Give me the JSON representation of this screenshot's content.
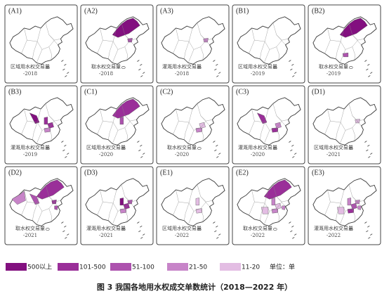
{
  "panels": [
    {
      "label": "(A1)",
      "caption": "区域用水权交易量",
      "year": "-2018"
    },
    {
      "label": "(A2)",
      "caption": "取水权交易量",
      "year": "-2018"
    },
    {
      "label": "(A3)",
      "caption": "灌溉用水权交易量",
      "year": "-2018"
    },
    {
      "label": "(B1)",
      "caption": "区域用水权交易量",
      "year": "-2019"
    },
    {
      "label": "(B2)",
      "caption": "取水权交易量",
      "year": "-2019"
    },
    {
      "label": "(B3)",
      "caption": "灌溉用水权交易量",
      "year": "-2019"
    },
    {
      "label": "(C1)",
      "caption": "区域用水权交易量",
      "year": "-2020"
    },
    {
      "label": "(C2)",
      "caption": "取水权交易量",
      "year": "-2020"
    },
    {
      "label": "(C3)",
      "caption": "灌溉用水权交易量",
      "year": "-2020"
    },
    {
      "label": "(D1)",
      "caption": "区域用水权交易量",
      "year": "-2021"
    },
    {
      "label": "(D2)",
      "caption": "取水权交易量",
      "year": "-2021"
    },
    {
      "label": "(D3)",
      "caption": "灌溉用水权交易量",
      "year": "-2021"
    },
    {
      "label": "(E1)",
      "caption": "区域用水权交易量",
      "year": "-2022"
    },
    {
      "label": "(E2)",
      "caption": "取水权交易量",
      "year": "-2022"
    },
    {
      "label": "(E3)",
      "caption": "灌溉用水权交易量",
      "year": "-2022"
    }
  ],
  "legend": {
    "items": [
      {
        "label": "500以上",
        "color": "#82107f"
      },
      {
        "label": "101-500",
        "color": "#9a2f99"
      },
      {
        "label": "51-100",
        "color": "#ad52ae"
      },
      {
        "label": "21-50",
        "color": "#c784c8"
      },
      {
        "label": "11-20",
        "color": "#e3bde3"
      }
    ],
    "unit": "单位：单"
  },
  "caption": "图 3  我国各地用水权成交单数统计（2018—2022 年）"
}
